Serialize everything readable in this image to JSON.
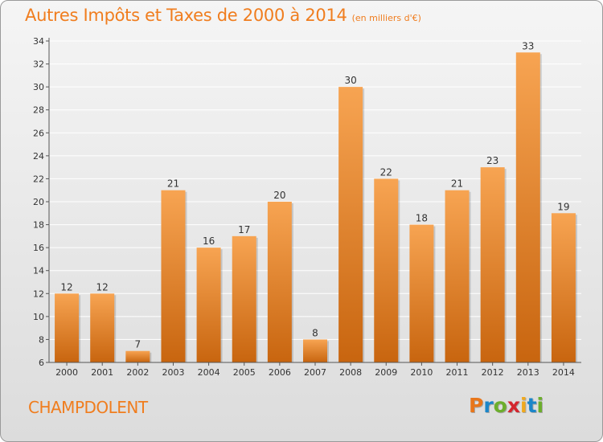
{
  "title": "Autres Impôts et Taxes de 2000 à 2014",
  "subtitle": "(en milliers d'€)",
  "commune": "CHAMPDOLENT",
  "logo": {
    "text": "Proxiti"
  },
  "colors": {
    "bar_light": "#f7a452",
    "bar_dark": "#c8650f",
    "accent": "#f07d1e",
    "axis": "#555555",
    "grid": "#ffffff"
  },
  "chart_data": {
    "type": "bar",
    "title": "Autres Impôts et Taxes de 2000 à 2014",
    "categories": [
      "2000",
      "2001",
      "2002",
      "2003",
      "2004",
      "2005",
      "2006",
      "2007",
      "2008",
      "2009",
      "2010",
      "2011",
      "2012",
      "2013",
      "2014"
    ],
    "values": [
      12,
      12,
      7,
      21,
      16,
      17,
      20,
      8,
      30,
      22,
      18,
      21,
      23,
      33,
      19
    ],
    "ylim": [
      6,
      34
    ],
    "yticks": [
      6,
      8,
      10,
      12,
      14,
      16,
      18,
      20,
      22,
      24,
      26,
      28,
      30,
      32,
      34
    ],
    "grid": true,
    "data_labels": true
  }
}
